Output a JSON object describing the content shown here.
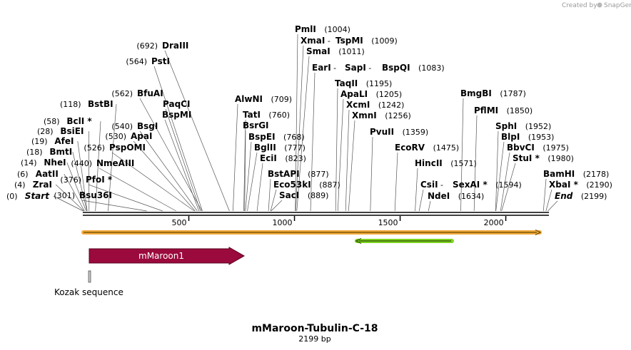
{
  "credit": {
    "text": "Created by",
    "brand": "SnapGene"
  },
  "plasmid": {
    "name": "mMaroon-Tubulin-C-18",
    "length_label": "2199 bp"
  },
  "colors": {
    "mmaroon_feature": "#9b0a3c",
    "orange_arrow": "#f2a93b",
    "green_arrow": "#7ed321",
    "backbone": "#000000"
  },
  "sites": [
    {
      "name": "Start",
      "pos": "(0)",
      "italic": true
    },
    {
      "name": "ZraI",
      "pos": "(4)"
    },
    {
      "name": "AatII",
      "pos": "(6)"
    },
    {
      "name": "NheI",
      "pos": "(14)"
    },
    {
      "name": "BmtI",
      "pos": "(18)"
    },
    {
      "name": "AfeI",
      "pos": "(19)"
    },
    {
      "name": "BsiEI",
      "pos": "(28)"
    },
    {
      "name": "BclI *",
      "pos": "(58)"
    },
    {
      "name": "BstBI",
      "pos": "(118)"
    },
    {
      "name": "Bsu36I",
      "pos": "(301)"
    },
    {
      "name": "PfoI *",
      "pos": "(376)"
    },
    {
      "name": "NmeAIII",
      "pos": "(440)"
    },
    {
      "name": "PspOMI",
      "pos": "(526)"
    },
    {
      "name": "ApaI",
      "pos": "(530)"
    },
    {
      "name": "BsgI",
      "pos": "(540)"
    },
    {
      "name": "BspMI",
      "pos": ""
    },
    {
      "name": "PaqCI",
      "pos": ""
    },
    {
      "name": "BfuAI",
      "pos": "(562)"
    },
    {
      "name": "PstI",
      "pos": "(564)"
    },
    {
      "name": "DraIII",
      "pos": "(692)"
    },
    {
      "name": "AlwNI",
      "pos": "(709)"
    },
    {
      "name": "TatI",
      "pos": "(760)"
    },
    {
      "name": "BsrGI",
      "pos": ""
    },
    {
      "name": "BspEI",
      "pos": "(768)"
    },
    {
      "name": "BglII",
      "pos": "(777)"
    },
    {
      "name": "EciI",
      "pos": "(823)"
    },
    {
      "name": "BstAPI",
      "pos": "(877)"
    },
    {
      "name": "Eco53kI",
      "pos": "(887)"
    },
    {
      "name": "SacI",
      "pos": "(889)"
    },
    {
      "name": "PmlI",
      "pos": "(1004)"
    },
    {
      "name": "XmaI",
      "pos": "",
      "joiner": " - "
    },
    {
      "name": "TspMI",
      "pos": "(1009)"
    },
    {
      "name": "SmaI",
      "pos": "(1011)"
    },
    {
      "name": "EarI",
      "pos": "",
      "joiner": " - "
    },
    {
      "name": "SapI",
      "pos": "",
      "joiner": " - "
    },
    {
      "name": "BspQI",
      "pos": "(1083)"
    },
    {
      "name": "TaqII",
      "pos": "(1195)"
    },
    {
      "name": "ApaLI",
      "pos": "(1205)"
    },
    {
      "name": "XcmI",
      "pos": "(1242)"
    },
    {
      "name": "XmnI",
      "pos": "(1256)"
    },
    {
      "name": "PvuII",
      "pos": "(1359)"
    },
    {
      "name": "EcoRV",
      "pos": "(1475)"
    },
    {
      "name": "HincII",
      "pos": "(1571)"
    },
    {
      "name": "CsiI",
      "pos": "",
      "joiner": " - "
    },
    {
      "name": "SexAI *",
      "pos": "(1594)"
    },
    {
      "name": "NdeI",
      "pos": "(1634)"
    },
    {
      "name": "BmgBI",
      "pos": "(1787)"
    },
    {
      "name": "PflMI",
      "pos": "(1850)"
    },
    {
      "name": "SphI",
      "pos": "(1952)"
    },
    {
      "name": "BlpI",
      "pos": "(1953)"
    },
    {
      "name": "BbvCI",
      "pos": "(1975)"
    },
    {
      "name": "StuI *",
      "pos": "(1980)"
    },
    {
      "name": "BamHI",
      "pos": "(2178)"
    },
    {
      "name": "XbaI *",
      "pos": "(2190)"
    },
    {
      "name": "End",
      "pos": "(2199)",
      "italic": true
    }
  ],
  "ruler": {
    "ticks": [
      "500",
      "1000",
      "1500",
      "2000"
    ]
  },
  "features": [
    {
      "label": "mMaroon1"
    },
    {
      "label": "Kozak sequence"
    }
  ]
}
